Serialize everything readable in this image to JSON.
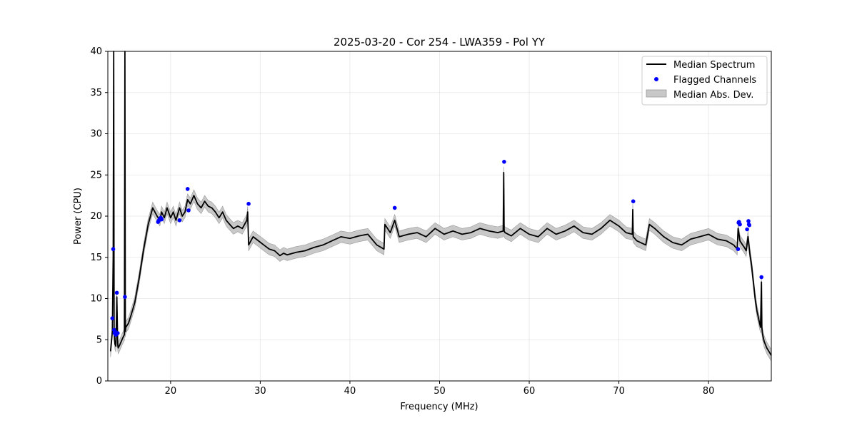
{
  "chart_data": {
    "type": "line",
    "title": "2025-03-20 - Cor 254 - LWA359 - Pol YY",
    "xlabel": "Frequency (MHz)",
    "ylabel": "Power (CPU)",
    "xlim": [
      13,
      87
    ],
    "ylim": [
      0,
      40
    ],
    "xticks": [
      20,
      30,
      40,
      50,
      60,
      70,
      80
    ],
    "yticks": [
      0,
      5,
      10,
      15,
      20,
      25,
      30,
      35,
      40
    ],
    "grid": true,
    "legend_position": "top-right",
    "legend": [
      "Median Spectrum",
      "Flagged Channels",
      "Median Abs. Dev."
    ],
    "series": [
      {
        "name": "Median Spectrum",
        "color": "#000000",
        "x": [
          13.3,
          13.5,
          13.6,
          13.65,
          13.7,
          13.75,
          13.8,
          13.9,
          14.0,
          14.1,
          14.15,
          14.2,
          14.3,
          14.5,
          14.7,
          14.85,
          14.9,
          14.95,
          15.0,
          15.3,
          15.6,
          16.0,
          16.5,
          17.0,
          17.5,
          18.0,
          18.5,
          18.8,
          19.0,
          19.3,
          19.6,
          20.0,
          20.3,
          20.6,
          21.0,
          21.3,
          21.6,
          21.9,
          22.2,
          22.6,
          23.0,
          23.4,
          23.8,
          24.2,
          24.6,
          25.0,
          25.4,
          25.8,
          26.2,
          26.6,
          27.0,
          27.5,
          28.0,
          28.5,
          28.6,
          28.7,
          29.2,
          29.8,
          30.4,
          31.0,
          31.6,
          32.2,
          32.6,
          33.0,
          34.0,
          35.0,
          36.0,
          37.0,
          38.0,
          39.0,
          40.0,
          41.0,
          42.0,
          43.0,
          43.8,
          43.9,
          44.5,
          45.0,
          45.5,
          46.5,
          47.5,
          48.5,
          49.5,
          50.5,
          51.5,
          52.5,
          53.5,
          54.5,
          55.5,
          56.5,
          57.1,
          57.15,
          57.2,
          57.3,
          58.0,
          59.0,
          60.0,
          61.0,
          62.0,
          63.0,
          64.0,
          65.0,
          66.0,
          67.0,
          68.0,
          69.0,
          70.0,
          70.8,
          71.5,
          71.55,
          71.6,
          72.0,
          73.0,
          73.4,
          74.0,
          75.0,
          76.0,
          77.0,
          78.0,
          79.0,
          80.0,
          81.0,
          82.0,
          82.8,
          83.2,
          83.3,
          83.5,
          83.8,
          84.0,
          84.2,
          84.4,
          84.6,
          84.8,
          85.0,
          85.2,
          85.4,
          85.6,
          85.8,
          85.9,
          85.95,
          86.0,
          86.2,
          86.5,
          87.0
        ],
        "y": [
          3.6,
          6.0,
          15.0,
          40.0,
          6.0,
          5.0,
          4.5,
          4.2,
          10.2,
          4.5,
          4.0,
          4.1,
          4.3,
          4.8,
          5.3,
          5.6,
          40.0,
          6.0,
          6.5,
          7.0,
          8.0,
          9.5,
          12.5,
          16.0,
          19.0,
          21.0,
          20.0,
          19.5,
          20.5,
          19.8,
          21.0,
          19.8,
          20.5,
          19.5,
          21.0,
          20.0,
          20.5,
          22.0,
          21.5,
          22.5,
          21.5,
          21.0,
          21.8,
          21.2,
          21.0,
          20.5,
          19.8,
          20.5,
          19.5,
          19.0,
          18.5,
          18.8,
          18.5,
          19.5,
          20.5,
          16.5,
          17.5,
          17.0,
          16.5,
          16.0,
          15.8,
          15.2,
          15.5,
          15.3,
          15.6,
          15.8,
          16.2,
          16.5,
          17.0,
          17.5,
          17.3,
          17.6,
          17.8,
          16.5,
          16.0,
          19.0,
          18.0,
          19.5,
          17.5,
          17.8,
          18.0,
          17.5,
          18.5,
          17.8,
          18.2,
          17.8,
          18.0,
          18.5,
          18.2,
          18.0,
          18.2,
          25.3,
          18.2,
          18.0,
          17.6,
          18.5,
          17.8,
          17.5,
          18.5,
          17.8,
          18.2,
          18.8,
          18.0,
          17.8,
          18.5,
          19.5,
          18.8,
          18.0,
          17.8,
          20.8,
          17.5,
          17.0,
          16.5,
          19.0,
          18.5,
          17.5,
          16.8,
          16.5,
          17.2,
          17.5,
          17.8,
          17.2,
          17.0,
          16.5,
          16.0,
          18.5,
          17.0,
          16.5,
          16.2,
          15.8,
          17.5,
          15.5,
          14.0,
          12.0,
          10.0,
          8.5,
          7.5,
          6.5,
          12.0,
          6.5,
          5.8,
          4.8,
          4.0,
          3.1
        ]
      },
      {
        "name": "Flagged Channels",
        "color": "#0000ff",
        "x": [
          13.5,
          13.6,
          13.7,
          13.75,
          13.8,
          13.9,
          14.0,
          14.1,
          14.9,
          18.6,
          18.7,
          18.8,
          18.9,
          19.0,
          21.0,
          21.9,
          22.0,
          28.7,
          45.0,
          57.2,
          71.6,
          83.3,
          83.35,
          83.4,
          83.5,
          84.3,
          84.45,
          84.5,
          84.55,
          85.9
        ],
        "y": [
          7.6,
          16.0,
          6.2,
          5.8,
          6.0,
          5.6,
          10.7,
          5.8,
          10.2,
          19.3,
          19.5,
          19.7,
          19.8,
          19.6,
          19.5,
          23.3,
          20.7,
          21.5,
          21.0,
          26.6,
          21.8,
          16.0,
          19.2,
          19.3,
          19.0,
          18.4,
          19.4,
          19.0,
          18.9,
          12.6
        ]
      },
      {
        "name": "Median Abs. Dev.",
        "color": "#c8c8c8",
        "band_half_width": 0.7
      }
    ]
  }
}
